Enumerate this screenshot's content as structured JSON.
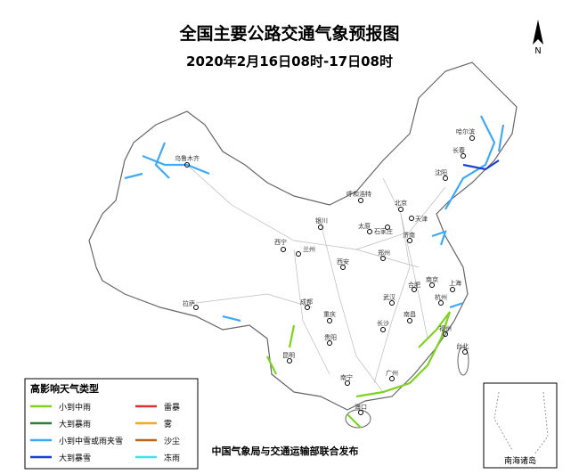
{
  "header": {
    "title": "全国主要公路交通气象预报图",
    "subtitle": "2020年2月16日08时-17日08时"
  },
  "north": "N",
  "cities": [
    "乌鲁木齐",
    "哈尔滨",
    "长春",
    "沈阳",
    "呼和浩特",
    "北京",
    "天津",
    "石家庄",
    "太原",
    "济南",
    "银川",
    "兰州",
    "西宁",
    "郑州",
    "西安",
    "南京",
    "上海",
    "合肥",
    "武汉",
    "杭州",
    "拉萨",
    "成都",
    "重庆",
    "长沙",
    "南昌",
    "福州",
    "贵阳",
    "昆明",
    "南宁",
    "广州",
    "台北",
    "海口"
  ],
  "legend": {
    "title": "高影响天气类型",
    "items": [
      {
        "name": "小到中雨",
        "color": "#7ed321"
      },
      {
        "name": "大到暴雨",
        "color": "#2e7d32"
      },
      {
        "name": "小到中雪或雨夹雪",
        "color": "#3fa9f5"
      },
      {
        "name": "大到暴雪",
        "color": "#1d3fd1"
      },
      {
        "name": "雷暴",
        "color": "#e0302f"
      },
      {
        "name": "雾",
        "color": "#f5a623"
      },
      {
        "name": "沙尘",
        "color": "#b5651d"
      },
      {
        "name": "冻雨",
        "color": "#3fe5e5"
      }
    ]
  },
  "inset_label": "南海诸岛",
  "footer": "中国气象局与交通运输部联合发布"
}
